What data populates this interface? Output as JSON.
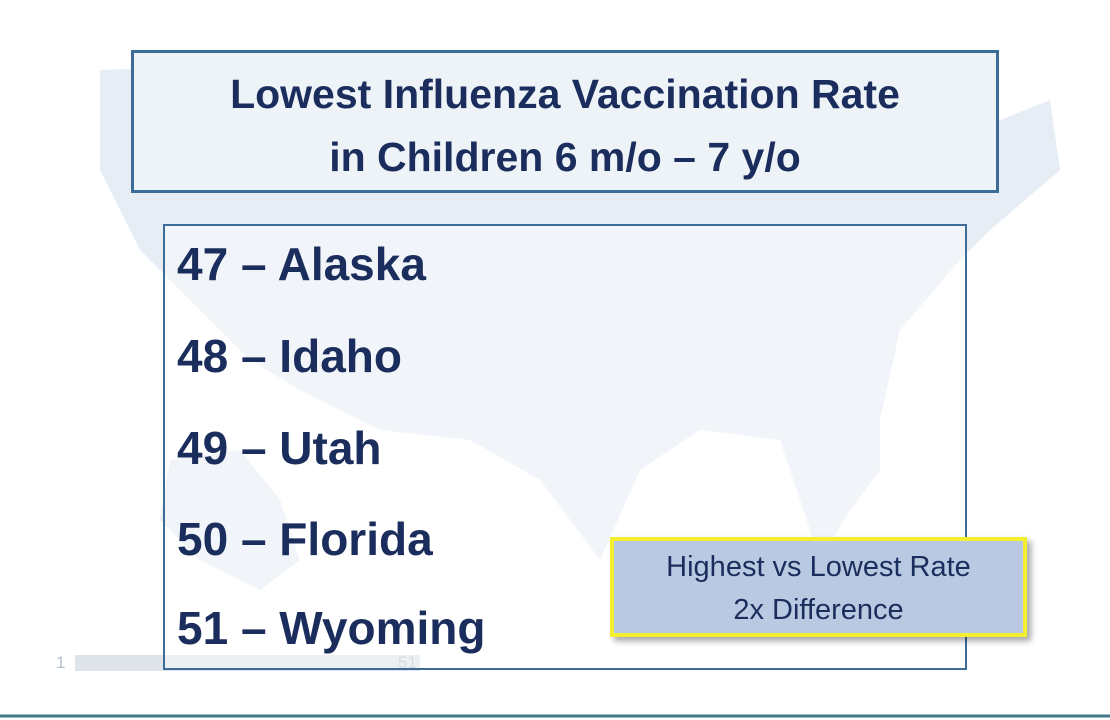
{
  "title": {
    "line1": "Lowest Influenza Vaccination Rate",
    "line2": "in Children 6 m/o – 7 y/o"
  },
  "list": {
    "items": [
      "47 – Alaska",
      "48 – Idaho",
      "49 – Utah",
      "50 – Florida",
      "51 – Wyoming"
    ]
  },
  "callout": {
    "line1": "Highest vs Lowest Rate",
    "line2": "2x Difference"
  },
  "legend": {
    "low": "1",
    "high": "51"
  }
}
